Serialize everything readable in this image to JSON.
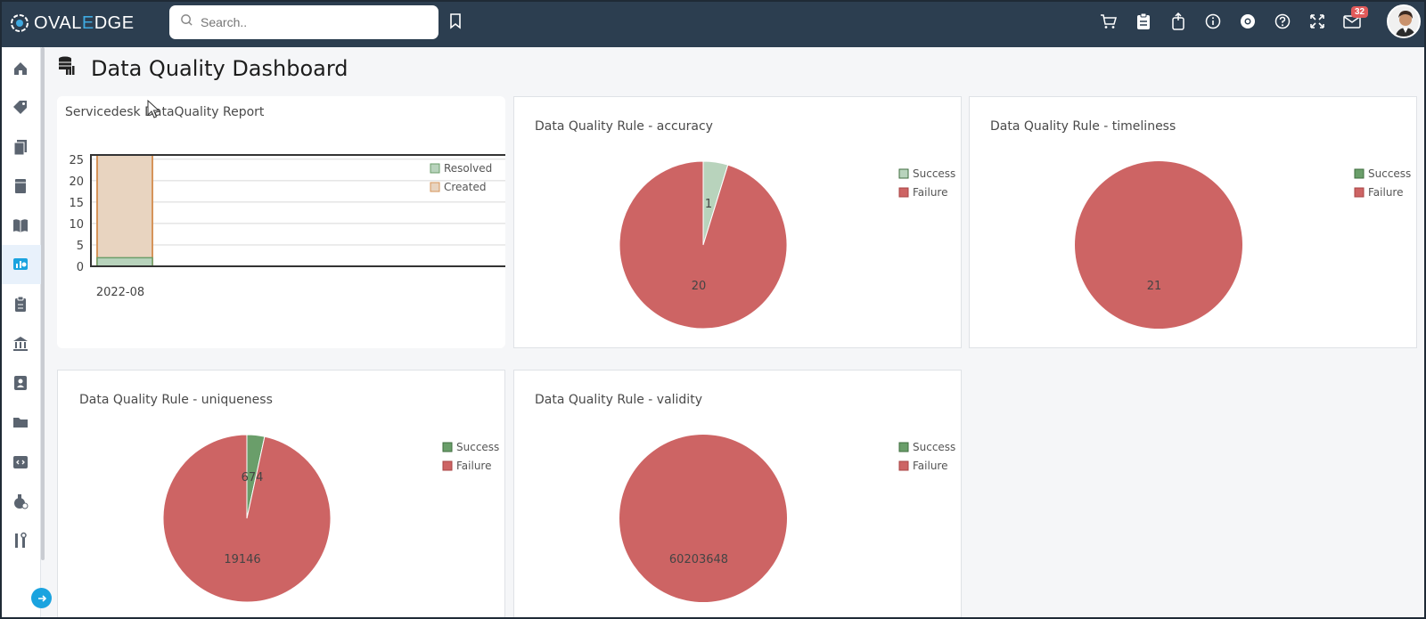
{
  "app": {
    "logo_text_a": "OVAL",
    "logo_text_b": "E",
    "logo_text_c": "DGE"
  },
  "search": {
    "placeholder": "Search.."
  },
  "header": {
    "notification_count": "32"
  },
  "page": {
    "title": "Data Quality Dashboard"
  },
  "colors": {
    "success": "#6a9e6a",
    "failure": "#cd6464",
    "success_light": "#b8d3bc",
    "created": "#e8d4c0",
    "created_border": "#d6945a",
    "topbar": "#2c3e50"
  },
  "sidebar_icons": [
    "home-icon",
    "tag-icon",
    "documents-icon",
    "book-icon",
    "library-icon",
    "dashboard-icon",
    "clipboard-icon",
    "bank-icon",
    "contacts-icon",
    "folder-icon",
    "code-icon",
    "flask-icon",
    "tools-icon"
  ],
  "cards": {
    "servicedesk": {
      "title": "Servicedesk DataQuality Report"
    },
    "accuracy": {
      "title": "Data Quality Rule - accuracy"
    },
    "timeliness": {
      "title": "Data Quality Rule - timeliness"
    },
    "uniqueness": {
      "title": "Data Quality Rule - uniqueness"
    },
    "validity": {
      "title": "Data Quality Rule - validity"
    }
  },
  "chart_data": [
    {
      "type": "bar",
      "title": "Servicedesk DataQuality Report",
      "categories": [
        "2022-08"
      ],
      "series": [
        {
          "name": "Resolved",
          "values": [
            2
          ]
        },
        {
          "name": "Created",
          "values": [
            26
          ]
        }
      ],
      "yticks": [
        "0",
        "5",
        "10",
        "15",
        "20",
        "25"
      ],
      "ylim": [
        0,
        26
      ],
      "legend": "top-right",
      "grid": true
    },
    {
      "type": "pie",
      "title": "Data Quality Rule - accuracy",
      "labels": [
        "Success",
        "Failure"
      ],
      "values": [
        1,
        20
      ],
      "value_labels": [
        "1",
        "20"
      ],
      "legend": "top-right"
    },
    {
      "type": "pie",
      "title": "Data Quality Rule - timeliness",
      "labels": [
        "Success",
        "Failure"
      ],
      "values": [
        0,
        21
      ],
      "value_labels": [
        "",
        "21"
      ],
      "legend": "top-right"
    },
    {
      "type": "pie",
      "title": "Data Quality Rule - uniqueness",
      "labels": [
        "Success",
        "Failure"
      ],
      "values": [
        674,
        19146
      ],
      "value_labels": [
        "674",
        "19146"
      ],
      "legend": "top-right"
    },
    {
      "type": "pie",
      "title": "Data Quality Rule - validity",
      "labels": [
        "Success",
        "Failure"
      ],
      "values": [
        0,
        60203648
      ],
      "value_labels": [
        "",
        "60203648"
      ],
      "legend": "top-right"
    }
  ]
}
